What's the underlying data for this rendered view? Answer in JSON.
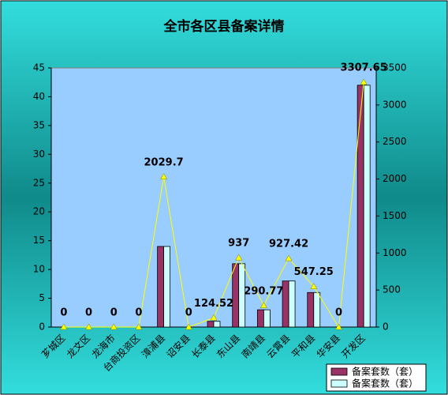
{
  "chart_data": {
    "type": "bar",
    "title": "全市各区县备案详情",
    "categories": [
      "芗城区",
      "龙文区",
      "龙海市",
      "台商投资区",
      "漳浦县",
      "诏安县",
      "长泰县",
      "东山县",
      "南靖县",
      "云霄县",
      "平和县",
      "华安县",
      "开发区"
    ],
    "series": [
      {
        "name": "备案套数（套）",
        "color": "#993366",
        "values": [
          0,
          0,
          0,
          0,
          14,
          0,
          1,
          11,
          3,
          8,
          6,
          0,
          42
        ]
      },
      {
        "name": "备案套数（套）",
        "color": "#ccffff",
        "values": [
          0,
          0,
          0,
          0,
          14,
          0,
          1,
          11,
          3,
          8,
          6,
          0,
          42
        ]
      },
      {
        "type": "line",
        "axis": "y2",
        "color": "#ffff00",
        "label_color": "#ff0000",
        "values": [
          0,
          0,
          0,
          0,
          2029.7,
          0,
          124.52,
          937,
          290.77,
          927.42,
          547.25,
          0,
          3307.65
        ]
      }
    ],
    "ylim": [
      0,
      45
    ],
    "yticks": [
      0,
      5,
      10,
      15,
      20,
      25,
      30,
      35,
      40,
      45
    ],
    "y2lim": [
      0,
      3500
    ],
    "y2ticks": [
      0,
      500,
      1000,
      1500,
      2000,
      2500,
      3000,
      3500
    ],
    "legend": "lower right"
  }
}
